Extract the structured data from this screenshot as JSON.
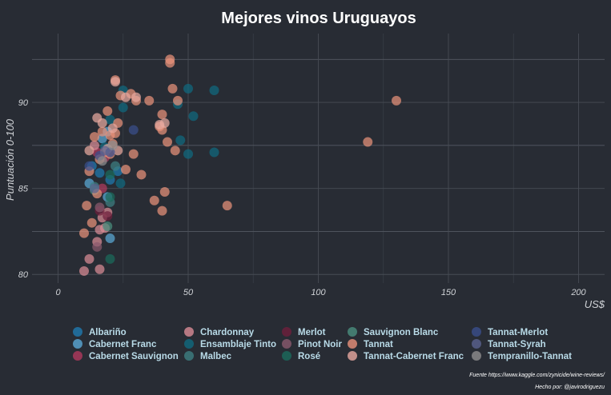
{
  "chart_data": {
    "type": "scatter",
    "title": "Mejores vinos Uruguayos",
    "xlabel": "US$",
    "ylabel": "Puntuación 0-100",
    "xlim": [
      -10,
      210
    ],
    "ylim": [
      79.5,
      94
    ],
    "x_ticks": [
      "0",
      "50",
      "100",
      "150",
      "200"
    ],
    "y_ticks": [
      "80",
      "85",
      "90"
    ],
    "grid": true,
    "legend_position": "bottom",
    "caption": [
      "Fuente https://www.kaggle.com/zynicide/wine-reviews/",
      "Hecho por: @javirodriguezu"
    ],
    "series": [
      {
        "name": "Albariño",
        "color": "#1f7ab0",
        "points": [
          [
            13,
            86.3
          ],
          [
            16,
            85.9
          ],
          [
            20,
            85.5
          ],
          [
            23,
            86.0
          ]
        ]
      },
      {
        "name": "Cabernet Franc",
        "color": "#5aa9d6",
        "points": [
          [
            12,
            85.3
          ],
          [
            17,
            87.9
          ],
          [
            19,
            88.3
          ],
          [
            20,
            82.1
          ],
          [
            19,
            84.5
          ]
        ]
      },
      {
        "name": "Cabernet Sauvignon",
        "color": "#b03a5e",
        "points": [
          [
            15,
            87.1
          ],
          [
            18,
            86.8
          ],
          [
            17,
            85.0
          ]
        ]
      },
      {
        "name": "Chardonnay",
        "color": "#d98c96",
        "points": [
          [
            10,
            80.2
          ],
          [
            12,
            80.9
          ],
          [
            15,
            81.9
          ],
          [
            16,
            82.6
          ],
          [
            16,
            80.3
          ],
          [
            17,
            83.3
          ],
          [
            18,
            82.7
          ],
          [
            19,
            83.6
          ],
          [
            14,
            87.5
          ]
        ]
      },
      {
        "name": "Ensamblaje Tinto",
        "color": "#0f6a80",
        "points": [
          [
            18,
            87.4
          ],
          [
            20,
            89.0
          ],
          [
            25,
            89.7
          ],
          [
            25,
            90.7
          ],
          [
            24,
            85.3
          ],
          [
            46,
            89.9
          ],
          [
            47,
            87.8
          ],
          [
            50,
            90.8
          ],
          [
            52,
            89.2
          ],
          [
            60,
            90.7
          ],
          [
            60,
            87.1
          ],
          [
            50,
            87.0
          ]
        ]
      },
      {
        "name": "Malbec",
        "color": "#3d7f82",
        "points": [
          [
            14,
            85.1
          ],
          [
            20,
            84.2
          ],
          [
            22,
            86.3
          ]
        ]
      },
      {
        "name": "Merlot",
        "color": "#6e1f3c",
        "points": [
          [
            16,
            83.7
          ],
          [
            19,
            83.4
          ]
        ]
      },
      {
        "name": "Pinot Noir",
        "color": "#8a5a6e",
        "points": [
          [
            16,
            83.9
          ],
          [
            15,
            81.6
          ]
        ]
      },
      {
        "name": "Rosé",
        "color": "#1a6b5c",
        "points": [
          [
            20,
            80.9
          ],
          [
            20,
            84.5
          ],
          [
            20,
            85.8
          ]
        ]
      },
      {
        "name": "Sauvignon Blanc",
        "color": "#4a8f7e",
        "points": [
          [
            14,
            84.9
          ],
          [
            19,
            82.8
          ]
        ]
      },
      {
        "name": "Tannat",
        "color": "#e8917a",
        "points": [
          [
            10,
            82.4
          ],
          [
            11,
            84.0
          ],
          [
            12,
            86.0
          ],
          [
            13,
            83.0
          ],
          [
            14,
            88.0
          ],
          [
            15,
            84.7
          ],
          [
            16,
            86.7
          ],
          [
            17,
            88.3
          ],
          [
            18,
            87.1
          ],
          [
            19,
            89.5
          ],
          [
            20,
            88.1
          ],
          [
            20,
            87.0
          ],
          [
            21,
            87.6
          ],
          [
            22,
            88.2
          ],
          [
            22,
            91.3
          ],
          [
            23,
            88.8
          ],
          [
            24,
            90.4
          ],
          [
            26,
            86.1
          ],
          [
            28,
            90.5
          ],
          [
            29,
            87.0
          ],
          [
            30,
            90.1
          ],
          [
            32,
            85.8
          ],
          [
            35,
            90.1
          ],
          [
            37,
            84.3
          ],
          [
            39,
            88.6
          ],
          [
            40,
            89.3
          ],
          [
            40,
            88.4
          ],
          [
            41,
            84.8
          ],
          [
            40,
            83.7
          ],
          [
            42,
            87.7
          ],
          [
            43,
            92.3
          ],
          [
            43,
            92.5
          ],
          [
            44,
            90.8
          ],
          [
            45,
            87.2
          ],
          [
            46,
            90.1
          ],
          [
            65,
            84.0
          ],
          [
            119,
            87.7
          ],
          [
            130,
            90.1
          ]
        ]
      },
      {
        "name": "Tannat-Cabernet Franc",
        "color": "#e7a9a0",
        "points": [
          [
            12,
            87.2
          ],
          [
            15,
            89.1
          ],
          [
            17,
            88.8
          ],
          [
            19,
            87.3
          ],
          [
            21,
            88.5
          ],
          [
            22,
            91.2
          ],
          [
            23,
            87.2
          ],
          [
            26,
            90.3
          ],
          [
            30,
            90.3
          ],
          [
            39,
            88.7
          ],
          [
            41,
            88.8
          ]
        ]
      },
      {
        "name": "Tannat-Merlot",
        "color": "#3a4f8c",
        "points": [
          [
            12,
            86.3
          ],
          [
            16,
            86.9
          ],
          [
            20,
            87.1
          ],
          [
            29,
            88.4
          ]
        ]
      },
      {
        "name": "Tannat-Syrah",
        "color": "#5a6390",
        "points": [
          [
            14,
            85.0
          ],
          [
            18,
            87.2
          ]
        ]
      },
      {
        "name": "Tempranillo-Tannat",
        "color": "#8e8e8e",
        "points": [
          [
            17,
            86.6
          ],
          [
            21,
            87.5
          ]
        ]
      }
    ]
  }
}
